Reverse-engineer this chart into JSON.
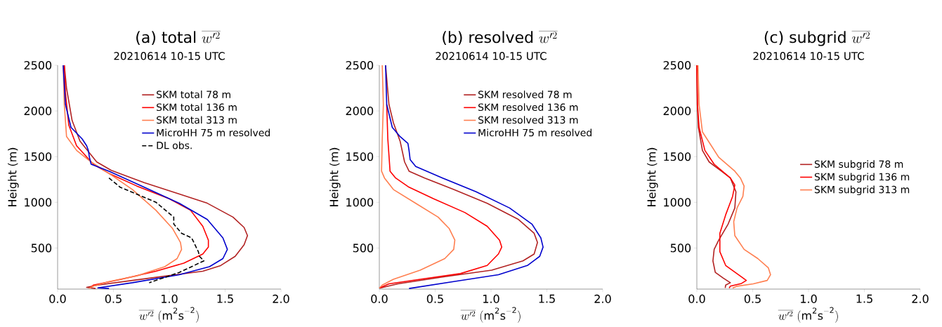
{
  "chart_data": [
    {
      "type": "line",
      "title": "\\mbox{(a) total }\\overline{w'^2}",
      "subtitle": "20210614   10-15 UTC",
      "xlabel": "\\overline{w'^2}\\ (\\mathrm{m^2 s^{-2}})",
      "ylabel": "Height (m)",
      "xlim": [
        0,
        2
      ],
      "ylim": [
        50,
        2500
      ],
      "xticks": [
        {
          "value": 0,
          "label": "0.0"
        },
        {
          "value": 0.5,
          "label": "0.5"
        },
        {
          "value": 1,
          "label": "1.0"
        },
        {
          "value": 1.5,
          "label": "1.5"
        },
        {
          "value": 2,
          "label": "2.0"
        }
      ],
      "yticks": [
        500,
        1000,
        1500,
        2000,
        2500
      ],
      "legend": "top right",
      "series": [
        {
          "name": "SKM total 78 m",
          "color": "#b22222",
          "x": [
            0.06,
            0.08,
            0.13,
            0.2,
            0.35,
            0.48,
            0.775,
            1.09,
            1.34,
            1.57,
            1.67,
            1.7,
            1.67,
            1.59,
            1.46,
            1.3,
            0.98,
            0.67,
            0.36,
            0.26,
            0.34
          ],
          "values": [
            2500,
            2250,
            1895,
            1670,
            1442,
            1350,
            1215,
            1090,
            990,
            838,
            724,
            636,
            535,
            409,
            308,
            246,
            195,
            145,
            94,
            69,
            57
          ]
        },
        {
          "name": "SKM total 136 m",
          "color": "#ff0000",
          "x": [
            0.06,
            0.07,
            0.1,
            0.17,
            0.32,
            0.46,
            0.71,
            1.0,
            1.19,
            1.3,
            1.35,
            1.35,
            1.3,
            1.13,
            0.88,
            0.57,
            0.32,
            0.29
          ],
          "values": [
            2500,
            2200,
            1845,
            1619,
            1417,
            1316,
            1178,
            1039,
            913,
            737,
            586,
            510,
            434,
            334,
            246,
            157,
            94,
            62
          ]
        },
        {
          "name": "SKM total 313 m",
          "color": "#ff7f50",
          "x": [
            0.05,
            0.06,
            0.08,
            0.17,
            0.3,
            0.46,
            0.67,
            0.88,
            1.03,
            1.1,
            1.11,
            1.07,
            0.96,
            0.71,
            0.46,
            0.32,
            0.28
          ],
          "values": [
            2500,
            2072,
            1720,
            1568,
            1442,
            1316,
            1140,
            913,
            712,
            560,
            485,
            384,
            296,
            195,
            132,
            82,
            57
          ]
        },
        {
          "name": "MicroHH 75 m resolved",
          "color": "#0000cd",
          "x": [
            0.05,
            0.07,
            0.12,
            0.22,
            0.26,
            0.275,
            0.285,
            0.3,
            0.46,
            0.775,
            1.09,
            1.34,
            1.48,
            1.52,
            1.48,
            1.36,
            1.09,
            0.67,
            0.36,
            0.46
          ],
          "values": [
            2500,
            2072,
            1820,
            1694,
            1619,
            1568,
            1493,
            1417,
            1341,
            1165,
            989,
            812,
            611,
            485,
            384,
            296,
            208,
            120,
            64,
            57
          ]
        },
        {
          "name": "DL obs.",
          "color": "#000000",
          "line_style": "dashed",
          "x": [
            0.46,
            0.56,
            0.88,
            1.04,
            1.04,
            1.11,
            1.2,
            1.22,
            1.26,
            1.27,
            1.31,
            1.09,
            0.82
          ],
          "values": [
            1266,
            1165,
            1001,
            838,
            762,
            661,
            611,
            560,
            460,
            409,
            359,
            233,
            120
          ]
        }
      ]
    },
    {
      "type": "line",
      "title": "\\mbox{(b) resolved }\\overline{w'^2}",
      "subtitle": "20210614   10-15 UTC",
      "xlabel": "\\overline{w'^2}\\ (\\mathrm{m^2 s^{-2}})",
      "ylabel": "Height (m)",
      "xlim": [
        0,
        2
      ],
      "ylim": [
        50,
        2500
      ],
      "xticks": [
        {
          "value": 0,
          "label": "0.0"
        },
        {
          "value": 0.5,
          "label": "0.5"
        },
        {
          "value": 1,
          "label": "1.0"
        },
        {
          "value": 1.5,
          "label": "1.5"
        },
        {
          "value": 2,
          "label": "2.0"
        }
      ],
      "yticks": [
        500,
        1000,
        1500,
        2000,
        2500
      ],
      "legend": "top right",
      "series": [
        {
          "name": "SKM resolved 78 m",
          "color": "#b22222",
          "x": [
            0.056,
            0.086,
            0.126,
            0.186,
            0.226,
            0.266,
            0.406,
            0.666,
            0.966,
            1.246,
            1.386,
            1.416,
            1.386,
            1.286,
            1.006,
            0.566,
            0.166,
            0.006
          ],
          "values": [
            2500,
            2072,
            1870,
            1669,
            1442,
            1341,
            1266,
            1140,
            989,
            812,
            661,
            560,
            434,
            359,
            258,
            183,
            107,
            62
          ]
        },
        {
          "name": "SKM resolved 136 m",
          "color": "#ff0000",
          "x": [
            0.066,
            0.076,
            0.096,
            0.146,
            0.266,
            0.486,
            0.766,
            0.966,
            1.076,
            1.096,
            1.066,
            0.966,
            0.726,
            0.366,
            0.086,
            0.0
          ],
          "values": [
            2072,
            1694,
            1341,
            1266,
            1165,
            1039,
            888,
            737,
            586,
            510,
            434,
            309,
            220,
            157,
            107,
            62
          ]
        },
        {
          "name": "SKM resolved 313 m",
          "color": "#ff7f50",
          "x": [
            0.026,
            0.036,
            0.026,
            0.02,
            0.046,
            0.126,
            0.326,
            0.526,
            0.626,
            0.676,
            0.666,
            0.586,
            0.366,
            0.126,
            0.026,
            0.0
          ],
          "values": [
            2500,
            2072,
            1694,
            1341,
            1266,
            1140,
            989,
            838,
            712,
            586,
            485,
            384,
            258,
            157,
            94,
            62
          ]
        },
        {
          "name": "MicroHH 75 m resolved",
          "color": "#0000cd",
          "x": [
            0.056,
            0.066,
            0.116,
            0.186,
            0.256,
            0.266,
            0.276,
            0.326,
            0.566,
            0.866,
            1.166,
            1.366,
            1.446,
            1.466,
            1.436,
            1.326,
            1.066,
            0.666,
            0.266
          ],
          "values": [
            2500,
            2072,
            1820,
            1719,
            1644,
            1568,
            1467,
            1392,
            1266,
            1115,
            938,
            762,
            611,
            510,
            409,
            309,
            208,
            132,
            57
          ]
        }
      ]
    },
    {
      "type": "line",
      "title": "\\mbox{(c) subgrid }\\overline{w'^2}",
      "subtitle": "20210614   10-15 UTC",
      "xlabel": "\\overline{w'^2}\\ (\\mathrm{m^2 s^{-2}})",
      "ylabel": "Height (m)",
      "xlim": [
        0,
        2
      ],
      "ylim": [
        50,
        2500
      ],
      "xticks": [
        {
          "value": 0,
          "label": "0.0"
        },
        {
          "value": 0.5,
          "label": "0.5"
        },
        {
          "value": 1,
          "label": "1.0"
        },
        {
          "value": 1.5,
          "label": "1.5"
        },
        {
          "value": 2,
          "label": "2.0"
        }
      ],
      "yticks": [
        500,
        1000,
        1500,
        2000,
        2500
      ],
      "legend": "right",
      "series": [
        {
          "name": "SKM subgrid 78 m",
          "color": "#b22222",
          "x": [
            0.0,
            0.004,
            0.014,
            0.05,
            0.11,
            0.22,
            0.3,
            0.35,
            0.34,
            0.28,
            0.196,
            0.155,
            0.144,
            0.165,
            0.237,
            0.3,
            0.258,
            0.254
          ],
          "values": [
            2500,
            2072,
            1820,
            1568,
            1442,
            1341,
            1266,
            1115,
            938,
            762,
            586,
            485,
            359,
            233,
            170,
            120,
            94,
            62
          ]
        },
        {
          "name": "SKM subgrid 136 m",
          "color": "#ff0000",
          "x": [
            0.0,
            0.006,
            0.02,
            0.072,
            0.155,
            0.3,
            0.34,
            0.32,
            0.258,
            0.206,
            0.206,
            0.258,
            0.4,
            0.443,
            0.4,
            0.3,
            0.289
          ],
          "values": [
            2500,
            2072,
            1820,
            1568,
            1417,
            1266,
            1190,
            1064,
            863,
            661,
            460,
            309,
            183,
            145,
            112,
            82,
            62
          ]
        },
        {
          "name": "SKM subgrid 313 m",
          "color": "#ff7f50",
          "x": [
            0.01,
            0.02,
            0.05,
            0.196,
            0.34,
            0.39,
            0.423,
            0.412,
            0.36,
            0.33,
            0.34,
            0.423,
            0.546,
            0.64,
            0.66,
            0.63,
            0.505,
            0.36,
            0.32
          ],
          "values": [
            2500,
            2072,
            1770,
            1493,
            1341,
            1266,
            1178,
            1064,
            938,
            787,
            636,
            485,
            384,
            283,
            208,
            145,
            107,
            82,
            62
          ]
        }
      ]
    }
  ]
}
